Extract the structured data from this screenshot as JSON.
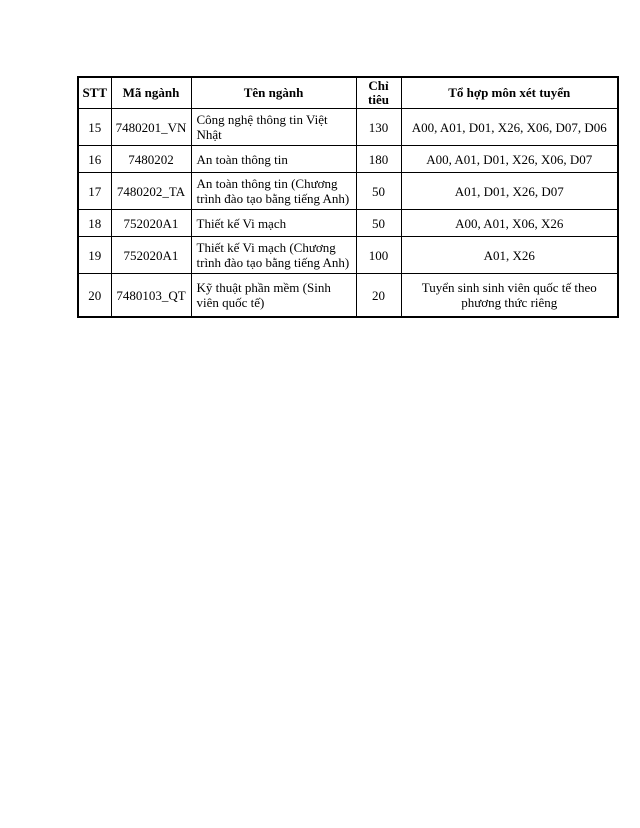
{
  "page": {
    "background": "#ffffff"
  },
  "colors": {
    "border": "#000000",
    "text": "#000000",
    "background": "#ffffff"
  },
  "table": {
    "columns": [
      {
        "key": "stt",
        "label": "STT"
      },
      {
        "key": "ma_nganh",
        "label": "Mã ngành"
      },
      {
        "key": "ten_nganh",
        "label": "Tên ngành"
      },
      {
        "key": "chi_tieu",
        "label": "Chỉ tiêu"
      },
      {
        "key": "to_hop",
        "label": "Tổ hợp môn xét tuyển"
      }
    ],
    "rows": [
      {
        "stt": "15",
        "ma_nganh": "7480201_VN",
        "ten_nganh": "Công nghệ thông tin Việt Nhật",
        "chi_tieu": "130",
        "to_hop": "A00, A01, D01, X26, X06, D07, D06"
      },
      {
        "stt": "16",
        "ma_nganh": "7480202",
        "ten_nganh": "An toàn thông tin",
        "chi_tieu": "180",
        "to_hop": "A00, A01, D01, X26, X06, D07"
      },
      {
        "stt": "17",
        "ma_nganh": "7480202_TA",
        "ten_nganh": "An toàn thông tin (Chương trình đào tạo bằng tiếng Anh)",
        "chi_tieu": "50",
        "to_hop": "A01, D01, X26, D07"
      },
      {
        "stt": "18",
        "ma_nganh": "752020A1",
        "ten_nganh": "Thiết kế Vi mạch",
        "chi_tieu": "50",
        "to_hop": "A00, A01, X06, X26"
      },
      {
        "stt": "19",
        "ma_nganh": "752020A1",
        "ten_nganh": "Thiết kế Vi mạch (Chương trình đào tạo bằng tiếng Anh)",
        "chi_tieu": "100",
        "to_hop": "A01, X26"
      },
      {
        "stt": "20",
        "ma_nganh": "7480103_QT",
        "ten_nganh": "Kỹ thuật phần mềm (Sinh viên quốc tế)",
        "chi_tieu": "20",
        "to_hop": "Tuyển sinh sinh viên quốc tế theo phương thức riêng"
      }
    ]
  }
}
